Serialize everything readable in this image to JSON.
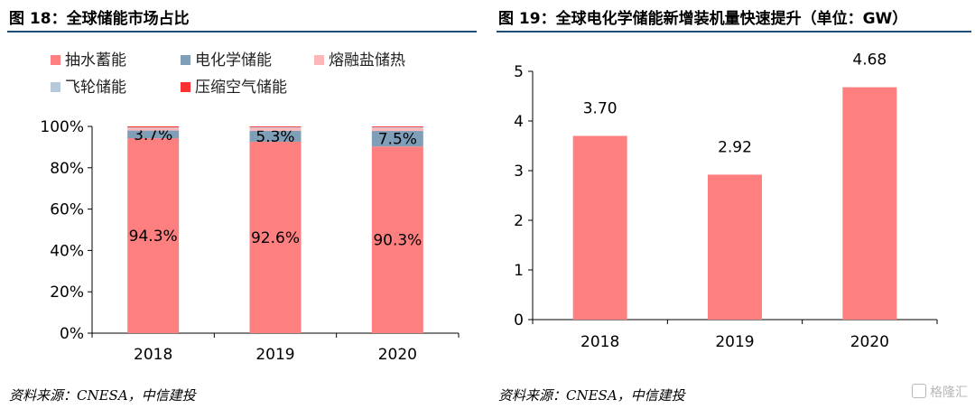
{
  "left": {
    "title": "图 18：全球储能市场占比",
    "source": "资料来源：CNESA，中信建投"
  },
  "right": {
    "title": "图 19：全球电化学储能新增装机量快速提升（单位：GW）",
    "source": "资料来源：CNESA，中信建投"
  },
  "watermark": "格隆汇",
  "chart_data": [
    {
      "type": "bar",
      "stacked": true,
      "title": "图 18：全球储能市场占比",
      "categories": [
        "2018",
        "2019",
        "2020"
      ],
      "series": [
        {
          "name": "抽水蓄能",
          "values": [
            94.3,
            92.6,
            90.3
          ],
          "labels": [
            "94.3%",
            "92.6%",
            "90.3%"
          ],
          "color": "#fe7f80"
        },
        {
          "name": "电化学储能",
          "values": [
            3.7,
            5.3,
            7.5
          ],
          "labels": [
            "3.7%",
            "5.3%",
            "7.5%"
          ],
          "color": "#7f9fb9"
        },
        {
          "name": "熔融盐储热",
          "values": [
            1.2,
            1.3,
            1.4
          ],
          "color": "#feb7b8"
        },
        {
          "name": "飞轮储能",
          "values": [
            0.3,
            0.4,
            0.4
          ],
          "color": "#b6c9db"
        },
        {
          "name": "压缩空气储能",
          "values": [
            0.5,
            0.4,
            0.4
          ],
          "color": "#fe3030"
        }
      ],
      "ylim": [
        0,
        100
      ],
      "yticks": [
        "0%",
        "20%",
        "40%",
        "60%",
        "80%",
        "100%"
      ],
      "legend": "top",
      "grid": false
    },
    {
      "type": "bar",
      "title": "图 19：全球电化学储能新增装机量快速提升（单位：GW）",
      "categories": [
        "2018",
        "2019",
        "2020"
      ],
      "values": [
        3.7,
        2.92,
        4.68
      ],
      "labels": [
        "3.70",
        "2.92",
        "4.68"
      ],
      "color": "#fe7f80",
      "ylim": [
        0,
        5
      ],
      "yticks": [
        "0",
        "1",
        "2",
        "3",
        "4",
        "5"
      ],
      "grid": false
    }
  ]
}
